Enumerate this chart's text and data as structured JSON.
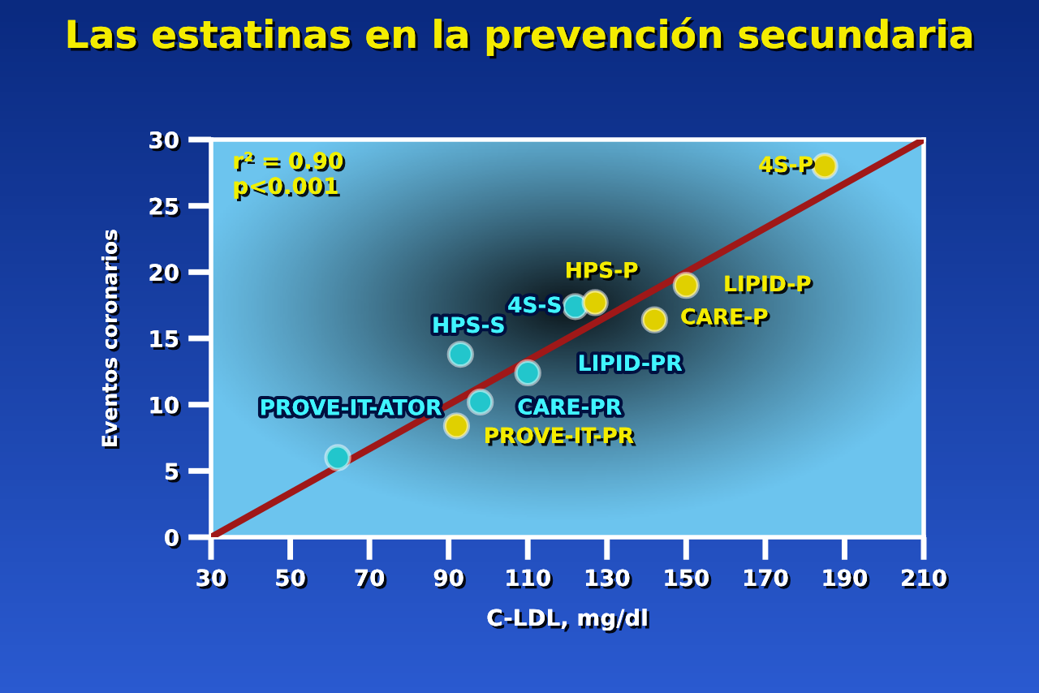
{
  "chart_data": {
    "type": "scatter",
    "title": "Las estatinas en la prevención secundaria",
    "xlabel": "C-LDL, mg/dl",
    "ylabel": "Eventos coronarios",
    "xlim": [
      30,
      210
    ],
    "xticks": [
      30,
      50,
      70,
      90,
      110,
      130,
      150,
      170,
      190,
      210
    ],
    "ylim": [
      0,
      30
    ],
    "yticks": [
      0,
      5,
      10,
      15,
      20,
      25,
      30
    ],
    "grid": false,
    "legend": false,
    "marker": "circle",
    "series": [
      {
        "color": "#22c6cc",
        "x": [
          62,
          98,
          110,
          93,
          122
        ],
        "values": [
          6.0,
          10.2,
          12.4,
          13.8,
          17.4
        ]
      },
      {
        "color": "#e0d000",
        "x": [
          92,
          127,
          142,
          150,
          185
        ],
        "values": [
          8.4,
          17.7,
          16.4,
          19.0,
          28.0
        ]
      },
      {
        "type": "line",
        "color": "#a01818",
        "x": [
          30,
          210
        ],
        "values": [
          0,
          30
        ],
        "marker": "none"
      }
    ],
    "annotations": [
      "r² = 0.90\np<0.001",
      {
        "text": "PROVE-IT-ATOR",
        "x": 62,
        "y": 6.0
      },
      {
        "text": "CARE-PR",
        "x": 98,
        "y": 10.2
      },
      {
        "text": "LIPID-PR",
        "x": 110,
        "y": 12.4
      },
      {
        "text": "HPS-S",
        "x": 93,
        "y": 13.8
      },
      {
        "text": "4S-S",
        "x": 122,
        "y": 17.4
      },
      {
        "text": "PROVE-IT-PR",
        "x": 92,
        "y": 8.4
      },
      {
        "text": "HPS-P",
        "x": 127,
        "y": 17.7
      },
      {
        "text": "CARE-P",
        "x": 142,
        "y": 16.4
      },
      {
        "text": "LIPID-P",
        "x": 150,
        "y": 19.0
      },
      {
        "text": "4S-P",
        "x": 185,
        "y": 28.0
      }
    ]
  }
}
